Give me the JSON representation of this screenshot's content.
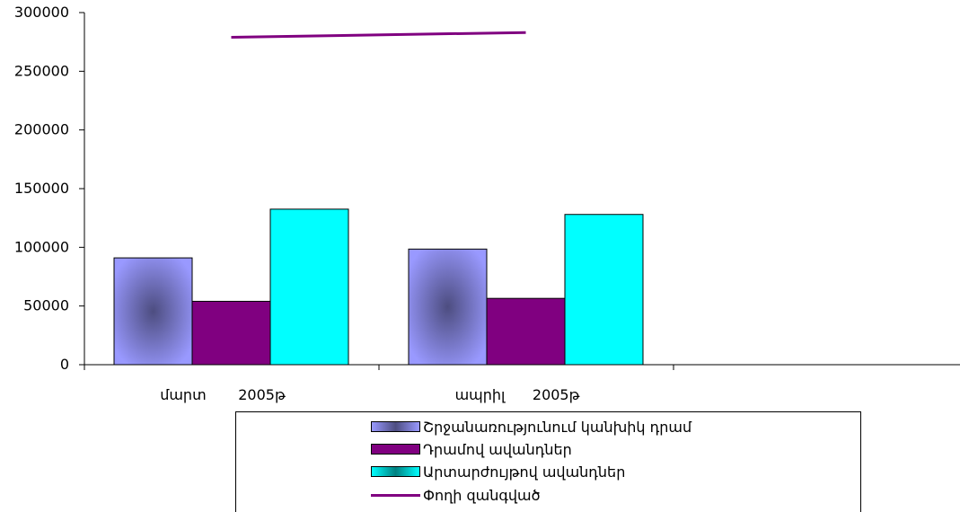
{
  "chart_data": {
    "type": "bar",
    "categories": [
      "մարտ       2005թ",
      "ապրիլ      2005թ"
    ],
    "series": [
      {
        "name": "Շրջանառությունում կանխիկ դրամ",
        "type": "bar",
        "values": [
          91000,
          98500
        ],
        "color": "#9999ff"
      },
      {
        "name": "Դրամով ավանդներ",
        "type": "bar",
        "values": [
          54000,
          56500
        ],
        "color": "#800080"
      },
      {
        "name": "Արտարժույթով ավանդներ",
        "type": "bar",
        "values": [
          132500,
          128000
        ],
        "color": "#00ffff"
      },
      {
        "name": "Փողի զանգված",
        "type": "line",
        "values": [
          279000,
          283000
        ],
        "color": "#800080"
      }
    ],
    "y_ticks": [
      "0",
      "50000",
      "100000",
      "150000",
      "200000",
      "250000",
      "300000"
    ],
    "ylim": [
      0,
      300000
    ],
    "grid": false,
    "legend_position": "bottom"
  }
}
